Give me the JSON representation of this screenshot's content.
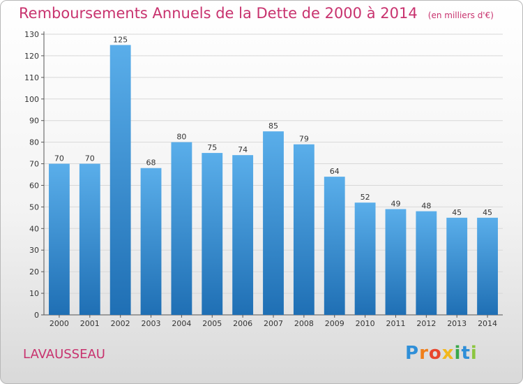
{
  "title": "Remboursements Annuels de la Dette de 2000 à 2014",
  "unit_note": "(en milliers d'€)",
  "commune": "LAVAUSSEAU",
  "logo": {
    "letters": [
      "P",
      "r",
      "o",
      "x",
      "i",
      "t",
      "i"
    ],
    "colors": [
      "#2f8fd8",
      "#f07f1a",
      "#e8462e",
      "#f2b81d",
      "#3aa84a",
      "#2f8fd8",
      "#8cc63f"
    ]
  },
  "colors": {
    "title": "#c8326e",
    "bar_top": "#5aaeea",
    "bar_bottom": "#1f6fb4",
    "grid": "#d8d8d8"
  },
  "chart_data": {
    "type": "bar",
    "categories": [
      "2000",
      "2001",
      "2002",
      "2003",
      "2004",
      "2005",
      "2006",
      "2007",
      "2008",
      "2009",
      "2010",
      "2011",
      "2012",
      "2013",
      "2014"
    ],
    "values": [
      70,
      70,
      125,
      68,
      80,
      75,
      74,
      85,
      79,
      64,
      52,
      49,
      48,
      45,
      45
    ],
    "title": "Remboursements Annuels de la Dette de 2000 à 2014",
    "ylim": [
      0,
      130
    ],
    "yticks": [
      0,
      10,
      20,
      30,
      40,
      50,
      60,
      70,
      80,
      90,
      100,
      110,
      120,
      130
    ],
    "grid": true,
    "data_labels": true
  }
}
